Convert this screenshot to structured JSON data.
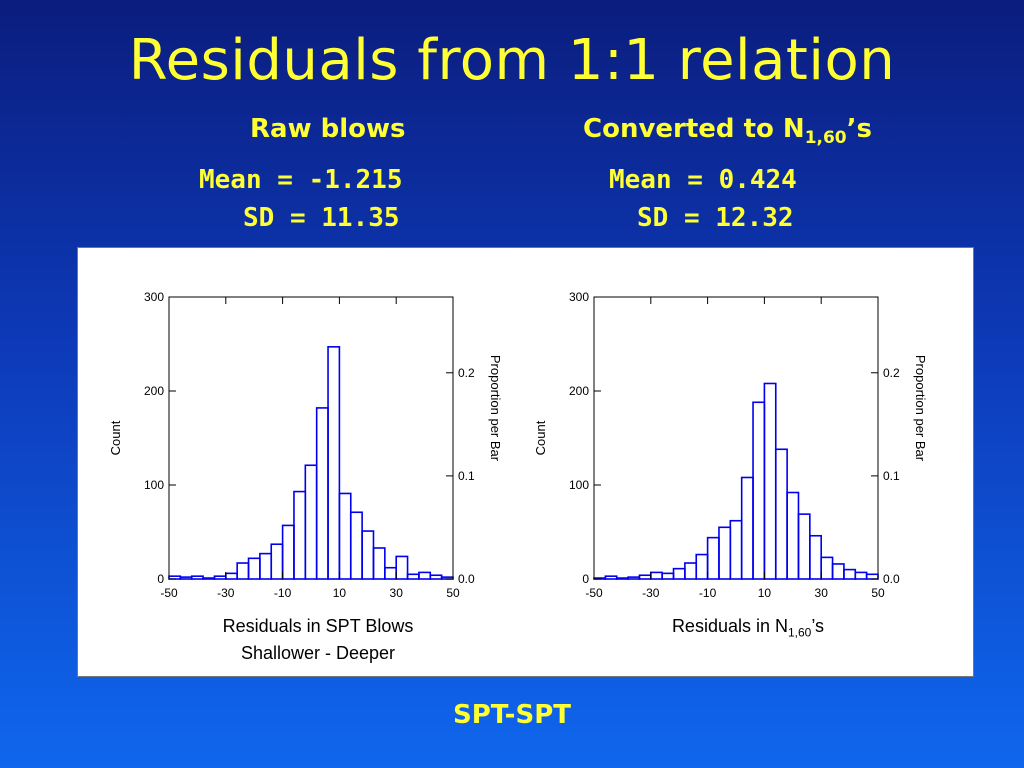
{
  "title": "Residuals from 1:1 relation",
  "left_header": {
    "label": "Raw blows",
    "mean": "Mean = -1.215",
    "sd": "SD = 11.35"
  },
  "right_header": {
    "label_main": "Converted to N",
    "label_sub": "1,60",
    "label_suffix": "’s",
    "mean": "Mean = 0.424",
    "sd": "SD = 12.32"
  },
  "left_caption": {
    "line1": "Residuals in SPT Blows",
    "line2": "Shallower - Deeper"
  },
  "right_caption": {
    "main": "Residuals in N",
    "sub": "1,60",
    "suffix": "’s"
  },
  "footer": "SPT-SPT",
  "colors": {
    "bar_stroke": "#0000ee",
    "title_text": "#ffff33",
    "panel_bg": "#ffffff"
  },
  "chart_data": [
    {
      "type": "bar",
      "title": "",
      "xlabel": "",
      "ylabel": "Count",
      "y2label": "Proportion per Bar",
      "xlim": [
        -50,
        50
      ],
      "ylim": [
        0,
        300
      ],
      "y2lim": [
        0.0,
        0.2735
      ],
      "bin_width": 4,
      "bin_start": -50,
      "x_ticks": [
        "-50",
        "-30",
        "-10",
        "10",
        "30",
        "50"
      ],
      "y_ticks": [
        "0",
        "100",
        "200",
        "300"
      ],
      "y2_ticks": [
        "0.0",
        "0.1",
        "0.2"
      ],
      "y2_tick_values": [
        0.0,
        0.1,
        0.2
      ],
      "values": [
        3,
        2,
        3,
        1,
        3,
        6,
        17,
        22,
        27,
        37,
        57,
        93,
        121,
        182,
        247,
        91,
        71,
        51,
        33,
        12,
        24,
        5,
        7,
        4,
        2
      ]
    },
    {
      "type": "bar",
      "title": "",
      "xlabel": "",
      "ylabel": "Count",
      "y2label": "Proportion per Bar",
      "xlim": [
        -50,
        50
      ],
      "ylim": [
        0,
        300
      ],
      "y2lim": [
        0.0,
        0.2735
      ],
      "bin_width": 4,
      "bin_start": -50,
      "x_ticks": [
        "-50",
        "-30",
        "-10",
        "10",
        "30",
        "50"
      ],
      "y_ticks": [
        "0",
        "100",
        "200",
        "300"
      ],
      "y2_ticks": [
        "0.0",
        "0.1",
        "0.2"
      ],
      "y2_tick_values": [
        0.0,
        0.1,
        0.2
      ],
      "values": [
        1,
        3,
        1,
        2,
        4,
        7,
        6,
        11,
        17,
        26,
        44,
        55,
        62,
        108,
        188,
        208,
        138,
        92,
        69,
        46,
        23,
        16,
        10,
        7,
        5
      ]
    }
  ]
}
